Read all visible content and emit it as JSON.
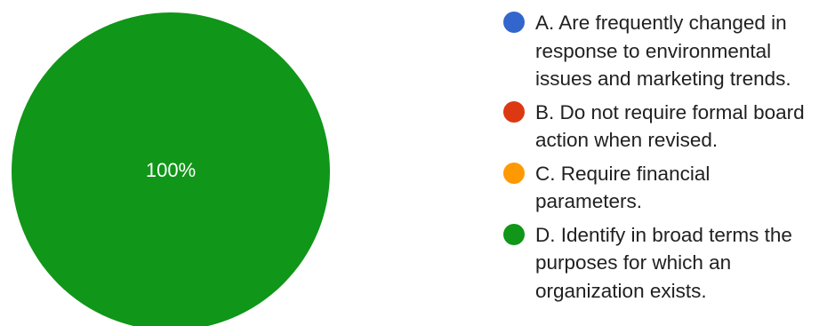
{
  "chart_data": {
    "type": "pie",
    "categories": [
      "A. Are frequently changed in response to environmental issues and marketing trends.",
      "B. Do not require formal board action when revised.",
      "C. Require financial parameters.",
      "D. Identify in broad terms the purposes for which an organization exists."
    ],
    "values": [
      0,
      0,
      0,
      100
    ],
    "colors": [
      "#3366cc",
      "#dc3912",
      "#ff9900",
      "#109618"
    ],
    "slice_labels": [
      "",
      "",
      "",
      "100%"
    ],
    "legend_placement": "right"
  },
  "legend": {
    "items": [
      {
        "lines": [
          "A. Are frequently changed in",
          "response to environmental",
          "issues and marketing trends."
        ],
        "color": "#3366cc"
      },
      {
        "lines": [
          "B. Do not require formal board",
          "action when revised."
        ],
        "color": "#dc3912"
      },
      {
        "lines": [
          "C. Require financial",
          "parameters."
        ],
        "color": "#ff9900"
      },
      {
        "lines": [
          "D. Identify in broad terms the",
          "purposes for which an",
          "organization exists."
        ],
        "color": "#109618"
      }
    ]
  }
}
